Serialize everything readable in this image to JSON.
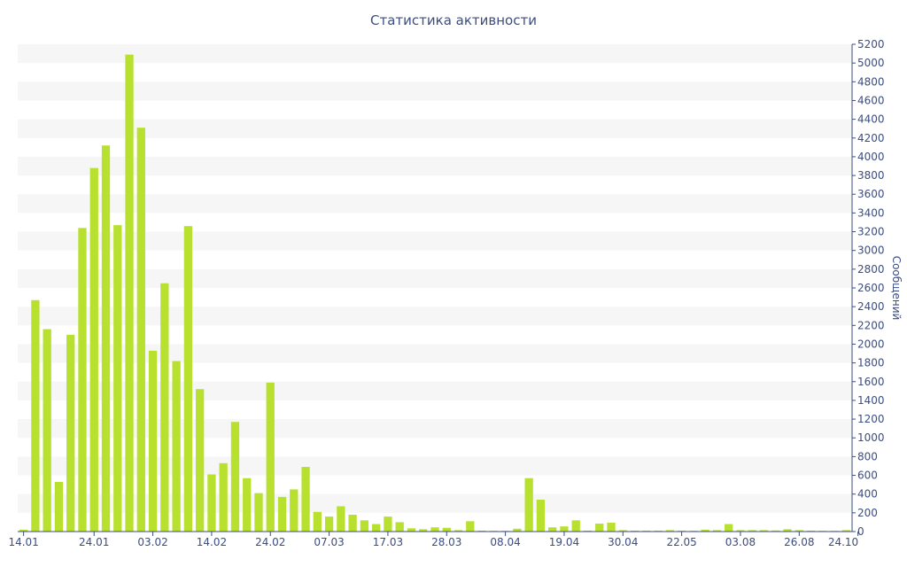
{
  "chart_data": {
    "type": "bar",
    "title": "Статистика активности",
    "xlabel": "",
    "ylabel": "Сообщений",
    "ylim": [
      0,
      5200
    ],
    "ytick_step": 200,
    "grid": "alternating horizontal bands",
    "bar_color": "#b8e02f",
    "band_color": "#f6f6f6",
    "axis_color": "#3b4d82",
    "x_tick_labels": [
      "14.01",
      "24.01",
      "03.02",
      "14.02",
      "24.02",
      "07.03",
      "17.03",
      "28.03",
      "08.04",
      "19.04",
      "30.04",
      "22.05",
      "03.08",
      "26.08",
      "24.10"
    ],
    "x_tick_indices": [
      0,
      6,
      11,
      16,
      21,
      26,
      31,
      36,
      41,
      46,
      51,
      56,
      61,
      66,
      71
    ],
    "values": [
      20,
      2470,
      2160,
      530,
      2100,
      3240,
      3880,
      4120,
      3270,
      5090,
      4310,
      1930,
      2650,
      1820,
      3260,
      1520,
      610,
      730,
      1170,
      570,
      410,
      1590,
      370,
      450,
      690,
      210,
      160,
      270,
      180,
      120,
      80,
      160,
      100,
      35,
      25,
      45,
      40,
      15,
      110,
      10,
      8,
      8,
      30,
      570,
      340,
      45,
      55,
      120,
      10,
      85,
      95,
      15,
      10,
      10,
      10,
      15,
      10,
      8,
      20,
      15,
      80,
      15,
      15,
      15,
      12,
      25,
      15,
      10,
      8,
      8,
      15
    ]
  }
}
